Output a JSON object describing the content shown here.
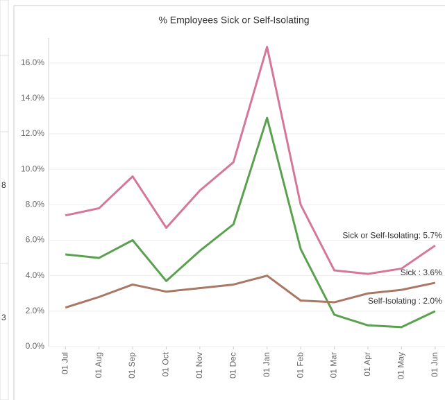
{
  "left_panel": {
    "texts": [
      "8",
      "3"
    ]
  },
  "chart_data": {
    "type": "line",
    "title": "% Employees Sick or Self-Isolating",
    "categories": [
      "01 Jul",
      "01 Aug",
      "01 Sep",
      "01 Oct",
      "01 Nov",
      "01 Dec",
      "01 Jan",
      "01 Feb",
      "01 Mar",
      "01 Apr",
      "01 May",
      "01 Jun"
    ],
    "series": [
      {
        "name": "Sick or Self-Isolating",
        "color": "#d4779a",
        "values": [
          7.4,
          7.8,
          9.6,
          6.7,
          8.8,
          10.4,
          16.9,
          8.0,
          4.3,
          4.1,
          4.4,
          5.7
        ],
        "end_label": "Sick or Self-Isolating: 5.7%"
      },
      {
        "name": "Self-Isolating",
        "color": "#59a14f",
        "values": [
          5.2,
          5.0,
          6.0,
          3.7,
          5.4,
          6.9,
          12.9,
          5.5,
          1.8,
          1.2,
          1.1,
          2.0
        ],
        "end_label": "Self-Isolating : 2.0%"
      },
      {
        "name": "Sick",
        "color": "#a97764",
        "values": [
          2.2,
          2.8,
          3.5,
          3.1,
          3.3,
          3.5,
          4.0,
          2.6,
          2.5,
          3.0,
          3.2,
          3.6
        ],
        "end_label": "Sick : 3.6%"
      }
    ],
    "ylim": [
      0,
      17.2
    ],
    "yticks": [
      {
        "value": 0,
        "label": "0.0%"
      },
      {
        "value": 2,
        "label": "2.0%"
      },
      {
        "value": 4,
        "label": "4.0%"
      },
      {
        "value": 6,
        "label": "6.0%"
      },
      {
        "value": 8,
        "label": "8.0%"
      },
      {
        "value": 10,
        "label": "10.0%"
      },
      {
        "value": 12,
        "label": "12.0%"
      },
      {
        "value": 14,
        "label": "14.0%"
      },
      {
        "value": 16,
        "label": "16.0%"
      }
    ],
    "grid": true
  }
}
